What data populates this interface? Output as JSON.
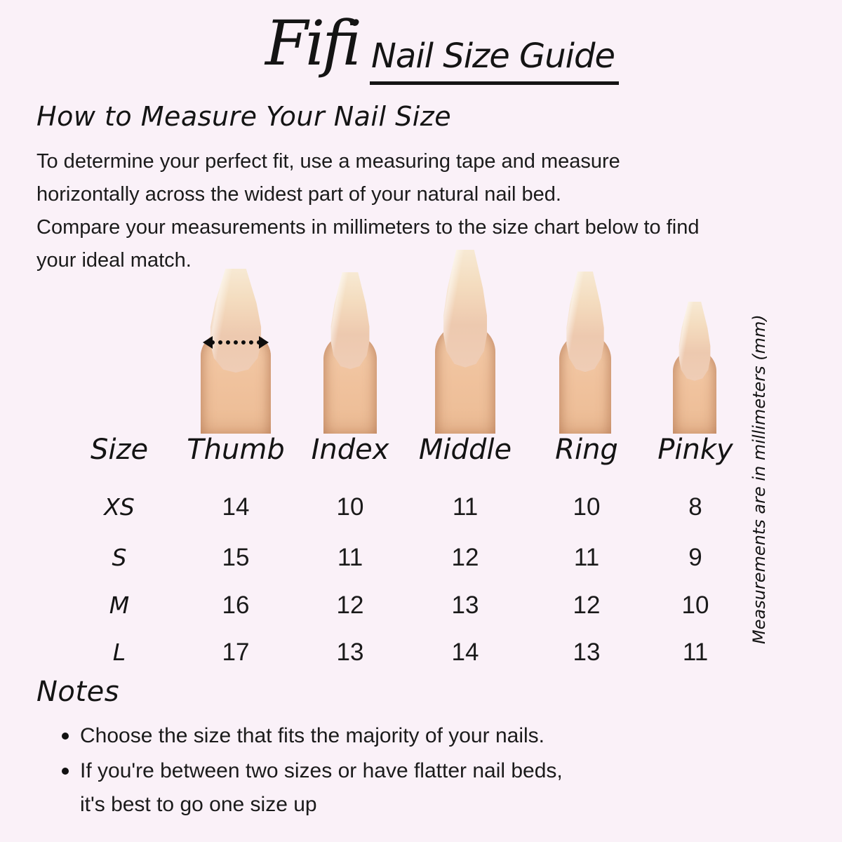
{
  "header": {
    "brand": "Fifi",
    "title": "Nail Size Guide"
  },
  "how_to": {
    "heading": "How to Measure Your Nail Size",
    "lines": [
      "To determine your perfect fit, use a measuring tape and measure",
      "horizontally across the widest part of your natural nail bed.",
      "Compare your measurements in millimeters to the size chart below to find",
      "your ideal match."
    ]
  },
  "size_chart": {
    "columns": [
      "Size",
      "Thumb",
      "Index",
      "Middle",
      "Ring",
      "Pinky"
    ],
    "rows": [
      {
        "size": "XS",
        "values": [
          14,
          10,
          11,
          10,
          8
        ]
      },
      {
        "size": "S",
        "values": [
          15,
          11,
          12,
          11,
          9
        ]
      },
      {
        "size": "M",
        "values": [
          16,
          12,
          13,
          12,
          10
        ]
      },
      {
        "size": "L",
        "values": [
          17,
          13,
          14,
          13,
          11
        ]
      }
    ]
  },
  "side_note": "Measurements are in millimeters (mm)",
  "notes": {
    "heading": "Notes",
    "bullets": [
      {
        "lines": [
          "Choose the size that fits the majority of your nails."
        ]
      },
      {
        "lines": [
          "If you're between two sizes or have flatter nail beds,",
          "it's best to go one size up"
        ]
      }
    ]
  },
  "colors": {
    "background": "#FAF1F8",
    "text": "#141414",
    "skin": "#F0C29D",
    "nail": "#F4DDC0",
    "nail_bed": "#EDC9AF",
    "arrow": "#0D0D0D"
  }
}
